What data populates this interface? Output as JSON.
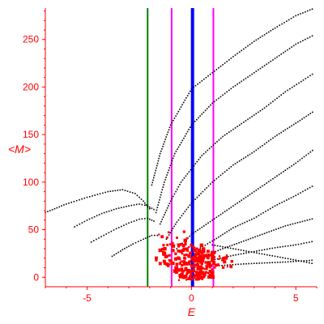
{
  "chart_data": {
    "type": "scatter",
    "title": "",
    "xlabel": "E",
    "ylabel": "<M>",
    "xlim": [
      -7,
      6
    ],
    "ylim": [
      -10,
      283
    ],
    "xticks": [
      -5,
      0,
      5
    ],
    "xtick_labels": [
      "-5",
      "0",
      "5"
    ],
    "yticks": [
      0,
      50,
      100,
      150,
      200,
      250
    ],
    "ytick_labels": [
      "0",
      "50",
      "100",
      "150",
      "200",
      "250"
    ],
    "grid": false,
    "axis_color": "#ff0000",
    "vertical_lines": [
      {
        "x": -2.1,
        "color": "#008000"
      },
      {
        "x": -0.95,
        "color": "#ff00ff"
      },
      {
        "x": 0.05,
        "color": "#0000ff",
        "thick": true
      },
      {
        "x": 1.05,
        "color": "#ff00ff"
      }
    ],
    "series": [
      {
        "color": "#000000",
        "kind": "dotted-curves",
        "curves": [
          [
            [
              -7,
              68
            ],
            [
              -6,
              77
            ],
            [
              -5,
              84
            ],
            [
              -4,
              90
            ],
            [
              -3.3,
              92
            ],
            [
              -2.7,
              88
            ],
            [
              -2.3,
              80
            ],
            [
              -2.1,
              74
            ],
            [
              -1.9,
              70
            ]
          ],
          [
            [
              -5.6,
              53
            ],
            [
              -5,
              60
            ],
            [
              -4.3,
              67
            ],
            [
              -3.6,
              72
            ],
            [
              -3,
              75
            ],
            [
              -2.5,
              77
            ],
            [
              -2.1,
              75
            ],
            [
              -1.7,
              70
            ]
          ],
          [
            [
              -4.8,
              37
            ],
            [
              -4.2,
              44
            ],
            [
              -3.6,
              51
            ],
            [
              -3,
              57
            ],
            [
              -2.5,
              61
            ],
            [
              -2.1,
              62
            ],
            [
              -1.7,
              58
            ]
          ],
          [
            [
              -3.8,
              22
            ],
            [
              -3.3,
              29
            ],
            [
              -2.8,
              35
            ],
            [
              -2.3,
              40
            ],
            [
              -1.9,
              44
            ],
            [
              -1.5,
              44
            ]
          ],
          [
            [
              -1.9,
              97
            ],
            [
              -1.5,
              130
            ],
            [
              -1,
              160
            ],
            [
              0,
              198
            ],
            [
              1,
              215
            ],
            [
              2,
              232
            ],
            [
              3,
              248
            ],
            [
              4,
              262
            ],
            [
              5,
              275
            ],
            [
              5.9,
              283
            ]
          ],
          [
            [
              -1.7,
              68
            ],
            [
              -1.3,
              100
            ],
            [
              -0.8,
              130
            ],
            [
              0,
              160
            ],
            [
              1,
              183
            ],
            [
              2,
              200
            ],
            [
              3,
              215
            ],
            [
              4,
              230
            ],
            [
              5,
              245
            ],
            [
              5.9,
              255
            ]
          ],
          [
            [
              -1.5,
              56
            ],
            [
              -1,
              80
            ],
            [
              -0.5,
              100
            ],
            [
              0.5,
              128
            ],
            [
              1.5,
              148
            ],
            [
              2.5,
              163
            ],
            [
              3.5,
              178
            ],
            [
              4.5,
              195
            ],
            [
              5.9,
              215
            ]
          ],
          [
            [
              -1.2,
              40
            ],
            [
              -0.7,
              58
            ],
            [
              0,
              78
            ],
            [
              1,
              100
            ],
            [
              2,
              118
            ],
            [
              3,
              132
            ],
            [
              4,
              148
            ],
            [
              5,
              162
            ],
            [
              5.9,
              175
            ]
          ],
          [
            [
              -0.7,
              30
            ],
            [
              0,
              45
            ],
            [
              1,
              60
            ],
            [
              2,
              75
            ],
            [
              3,
              90
            ],
            [
              4,
              105
            ],
            [
              5,
              120
            ],
            [
              5.9,
              135
            ]
          ],
          [
            [
              0.2,
              28
            ],
            [
              1,
              38
            ],
            [
              2,
              52
            ],
            [
              3,
              62
            ],
            [
              4,
              75
            ],
            [
              5,
              86
            ],
            [
              5.9,
              97
            ]
          ],
          [
            [
              0.6,
              22
            ],
            [
              1.5,
              30
            ],
            [
              2.5,
              38
            ],
            [
              3.5,
              46
            ],
            [
              4.5,
              54
            ],
            [
              5.9,
              62
            ]
          ],
          [
            [
              1,
              18
            ],
            [
              2,
              23
            ],
            [
              3,
              27
            ],
            [
              4,
              31
            ],
            [
              5,
              34
            ],
            [
              5.9,
              38
            ]
          ],
          [
            [
              1,
              34
            ],
            [
              2,
              30
            ],
            [
              3,
              26
            ],
            [
              4,
              22
            ],
            [
              5,
              18
            ],
            [
              5.9,
              14
            ]
          ],
          [
            [
              1.2,
              12
            ],
            [
              2.5,
              14
            ],
            [
              3.5,
              15
            ],
            [
              4.5,
              16
            ],
            [
              5.9,
              18
            ]
          ]
        ]
      },
      {
        "color": "#ff0000",
        "kind": "clusters",
        "clusters": [
          {
            "x": [
              -1.7,
              0.0
            ],
            "y": [
              12,
              48
            ],
            "n": 60
          },
          {
            "x": [
              -0.8,
              0.6
            ],
            "y": [
              5,
              35
            ],
            "n": 90
          },
          {
            "x": [
              0.1,
              1.1
            ],
            "y": [
              0,
              30
            ],
            "n": 90
          },
          {
            "x": [
              1.0,
              2.0
            ],
            "y": [
              10,
              25
            ],
            "n": 20
          },
          {
            "x": [
              -0.6,
              0.7
            ],
            "y": [
              -3,
              5
            ],
            "n": 25
          }
        ]
      }
    ]
  }
}
